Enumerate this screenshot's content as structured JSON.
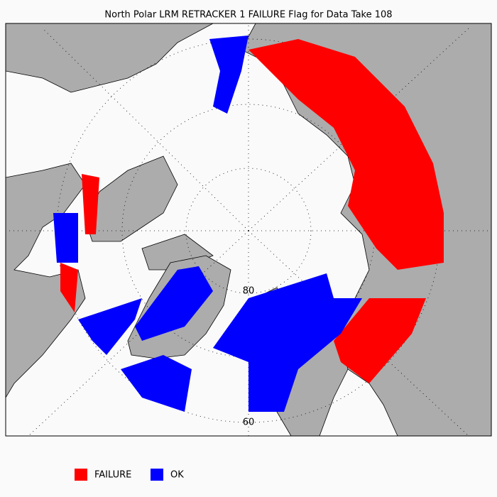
{
  "title": "North Polar LRM RETRACKER 1 FAILURE Flag for Data Take 108",
  "latitude_labels": [
    "80",
    "60"
  ],
  "legend": [
    {
      "label": "FAILURE",
      "color": "#ff0000"
    },
    {
      "label": "OK",
      "color": "#0000ff"
    }
  ]
}
